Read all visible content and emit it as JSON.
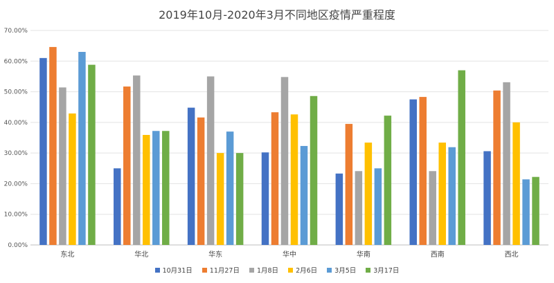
{
  "chart_data": {
    "type": "bar",
    "title": "2019年10月-2020年3月不同地区疫情严重程度",
    "categories": [
      "东北",
      "华北",
      "华东",
      "华中",
      "华南",
      "西南",
      "西北"
    ],
    "ylim": [
      0,
      70
    ],
    "yticks": [
      "0.00%",
      "10.00%",
      "20.00%",
      "30.00%",
      "40.00%",
      "50.00%",
      "60.00%",
      "70.00%"
    ],
    "grid": true,
    "legend_position": "bottom",
    "series": [
      {
        "name": "10月31日",
        "color": "#4472C4",
        "values": [
          61.0,
          25.0,
          44.8,
          30.2,
          23.3,
          47.5,
          30.6
        ]
      },
      {
        "name": "11月27日",
        "color": "#ED7D31",
        "values": [
          64.6,
          51.7,
          41.6,
          43.3,
          39.5,
          48.3,
          50.4
        ]
      },
      {
        "name": "1月8日",
        "color": "#A5A5A5",
        "values": [
          51.4,
          55.3,
          55.0,
          54.8,
          24.1,
          24.1,
          53.1
        ]
      },
      {
        "name": "2月6日",
        "color": "#FFC000",
        "values": [
          42.9,
          35.9,
          30.0,
          42.6,
          33.4,
          33.4,
          40.0
        ]
      },
      {
        "name": "3月5日",
        "color": "#5B9BD5",
        "values": [
          63.0,
          37.2,
          37.0,
          32.3,
          25.0,
          31.9,
          21.4
        ]
      },
      {
        "name": "3月17日",
        "color": "#70AD47",
        "values": [
          58.8,
          37.2,
          30.0,
          48.6,
          42.2,
          57.0,
          22.2
        ]
      }
    ]
  }
}
